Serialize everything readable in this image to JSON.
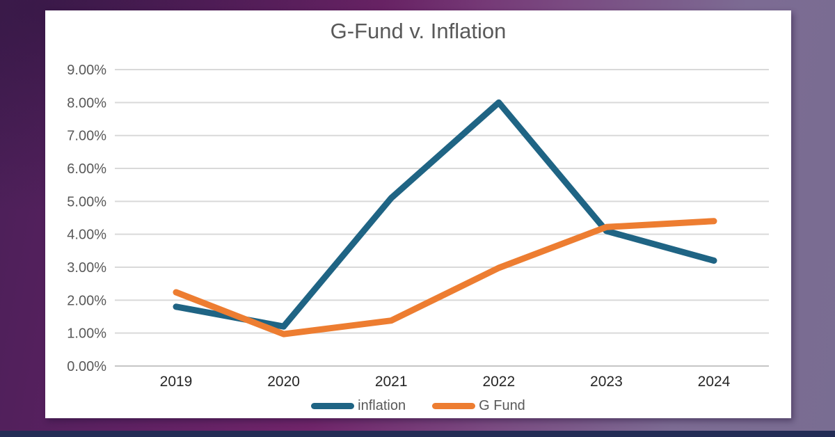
{
  "chart_data": {
    "type": "line",
    "title": "G-Fund v. Inflation",
    "categories": [
      "2019",
      "2020",
      "2021",
      "2022",
      "2023",
      "2024"
    ],
    "series": [
      {
        "name": "inflation",
        "color": "#1F6484",
        "values": [
          1.8,
          1.2,
          5.1,
          8.0,
          4.1,
          3.2
        ]
      },
      {
        "name": "G Fund",
        "color": "#ED7D31",
        "values": [
          2.24,
          0.97,
          1.38,
          2.98,
          4.22,
          4.4
        ]
      }
    ],
    "y_ticks": [
      "0.00%",
      "1.00%",
      "2.00%",
      "3.00%",
      "4.00%",
      "5.00%",
      "6.00%",
      "7.00%",
      "8.00%",
      "9.00%"
    ],
    "ylim": [
      0,
      9
    ],
    "grid": true,
    "legend_position": "bottom",
    "colors": {
      "axis_tick_label": "#595959",
      "category_label": "#262626",
      "gridline": "#D9D9D9",
      "axis_line": "#C6C6C6",
      "card_background": "#FFFFFF"
    }
  }
}
